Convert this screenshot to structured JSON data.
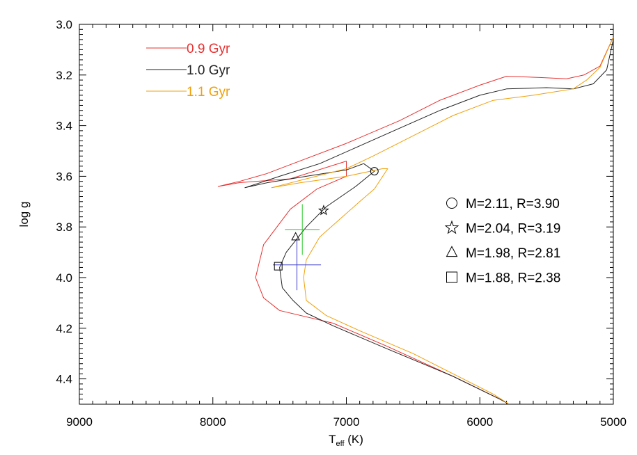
{
  "chart_data": {
    "type": "line",
    "title": "",
    "xlabel": "T",
    "xlabel_sub": "eff",
    "xlabel_unit": " (K)",
    "ylabel": "log g",
    "xlim": [
      9000,
      5000
    ],
    "ylim": [
      4.5,
      3.0
    ],
    "x_reversed": true,
    "y_reversed": true,
    "grid": false,
    "legend_position": "top-left",
    "x_ticks": [
      {
        "value": 9000,
        "label": "9000"
      },
      {
        "value": 8000,
        "label": "8000"
      },
      {
        "value": 7000,
        "label": "7000"
      },
      {
        "value": 6000,
        "label": "6000"
      },
      {
        "value": 5000,
        "label": "5000"
      }
    ],
    "y_ticks": [
      {
        "value": 3.0,
        "label": "3.0"
      },
      {
        "value": 3.2,
        "label": "3.2"
      },
      {
        "value": 3.4,
        "label": "3.4"
      },
      {
        "value": 3.6,
        "label": "3.6"
      },
      {
        "value": 3.8,
        "label": "3.8"
      },
      {
        "value": 4.0,
        "label": "4.0"
      },
      {
        "value": 4.2,
        "label": "4.2"
      },
      {
        "value": 4.4,
        "label": "4.4"
      }
    ],
    "series": [
      {
        "name": "0.9 Gyr",
        "color": "#e8302f",
        "points": [
          [
            5780,
            4.5
          ],
          [
            5850,
            4.48
          ],
          [
            6200,
            4.39
          ],
          [
            6700,
            4.27
          ],
          [
            7100,
            4.18
          ],
          [
            7500,
            4.13
          ],
          [
            7620,
            4.08
          ],
          [
            7680,
            4.0
          ],
          [
            7620,
            3.87
          ],
          [
            7420,
            3.73
          ],
          [
            7220,
            3.65
          ],
          [
            7000,
            3.6
          ],
          [
            7000,
            3.54
          ],
          [
            7420,
            3.61
          ],
          [
            7800,
            3.625
          ],
          [
            7960,
            3.64
          ],
          [
            7800,
            3.62
          ],
          [
            7600,
            3.59
          ],
          [
            7400,
            3.55
          ],
          [
            7000,
            3.47
          ],
          [
            6600,
            3.38
          ],
          [
            6300,
            3.3
          ],
          [
            6000,
            3.24
          ],
          [
            5800,
            3.205
          ],
          [
            5550,
            3.21
          ],
          [
            5350,
            3.215
          ],
          [
            5220,
            3.2
          ],
          [
            5100,
            3.165
          ],
          [
            5000,
            3.05
          ]
        ]
      },
      {
        "name": "1.0 Gyr",
        "color": "#222222",
        "points": [
          [
            5780,
            4.5
          ],
          [
            5850,
            4.48
          ],
          [
            6200,
            4.39
          ],
          [
            6700,
            4.28
          ],
          [
            7100,
            4.19
          ],
          [
            7300,
            4.14
          ],
          [
            7400,
            4.09
          ],
          [
            7480,
            4.04
          ],
          [
            7500,
            3.96
          ],
          [
            7450,
            3.9
          ],
          [
            7300,
            3.8
          ],
          [
            7150,
            3.72
          ],
          [
            6930,
            3.64
          ],
          [
            6790,
            3.58
          ],
          [
            6870,
            3.55
          ],
          [
            7000,
            3.575
          ],
          [
            7300,
            3.6
          ],
          [
            7590,
            3.625
          ],
          [
            7760,
            3.645
          ],
          [
            7500,
            3.6
          ],
          [
            7200,
            3.55
          ],
          [
            6900,
            3.48
          ],
          [
            6600,
            3.41
          ],
          [
            6300,
            3.34
          ],
          [
            6000,
            3.28
          ],
          [
            5800,
            3.255
          ],
          [
            5500,
            3.25
          ],
          [
            5300,
            3.255
          ],
          [
            5150,
            3.235
          ],
          [
            5050,
            3.18
          ],
          [
            5000,
            3.06
          ]
        ]
      },
      {
        "name": "1.1 Gyr",
        "color": "#f0a00a",
        "points": [
          [
            5780,
            4.5
          ],
          [
            5900,
            4.46
          ],
          [
            6200,
            4.38
          ],
          [
            6500,
            4.3
          ],
          [
            6900,
            4.21
          ],
          [
            7150,
            4.15
          ],
          [
            7300,
            4.09
          ],
          [
            7320,
            4.0
          ],
          [
            7300,
            3.93
          ],
          [
            7200,
            3.84
          ],
          [
            7050,
            3.77
          ],
          [
            6900,
            3.7
          ],
          [
            6790,
            3.65
          ],
          [
            6690,
            3.57
          ],
          [
            6730,
            3.57
          ],
          [
            7000,
            3.6
          ],
          [
            7340,
            3.625
          ],
          [
            7560,
            3.645
          ],
          [
            7300,
            3.61
          ],
          [
            7000,
            3.57
          ],
          [
            6800,
            3.52
          ],
          [
            6500,
            3.44
          ],
          [
            6200,
            3.36
          ],
          [
            5900,
            3.3
          ],
          [
            5600,
            3.28
          ],
          [
            5300,
            3.255
          ],
          [
            5200,
            3.22
          ],
          [
            5100,
            3.17
          ],
          [
            5000,
            3.05
          ]
        ]
      }
    ],
    "error_bars": [
      {
        "color": "#2ec82e",
        "x": 7330,
        "x_err": 130,
        "y": 3.81,
        "y_err": 0.1
      },
      {
        "color": "#3a3acc",
        "x": 7370,
        "x_err": 180,
        "y": 3.95,
        "y_err": 0.1
      }
    ],
    "markers": [
      {
        "shape": "circle",
        "x": 6790,
        "y": 3.58,
        "label": "M=2.11, R=3.90"
      },
      {
        "shape": "star",
        "x": 7170,
        "y": 3.735,
        "label": "M=2.04, R=3.19"
      },
      {
        "shape": "triangle",
        "x": 7380,
        "y": 3.84,
        "label": "M=1.98, R=2.81"
      },
      {
        "shape": "square",
        "x": 7510,
        "y": 3.955,
        "label": "M=1.88, R=2.38"
      }
    ]
  }
}
